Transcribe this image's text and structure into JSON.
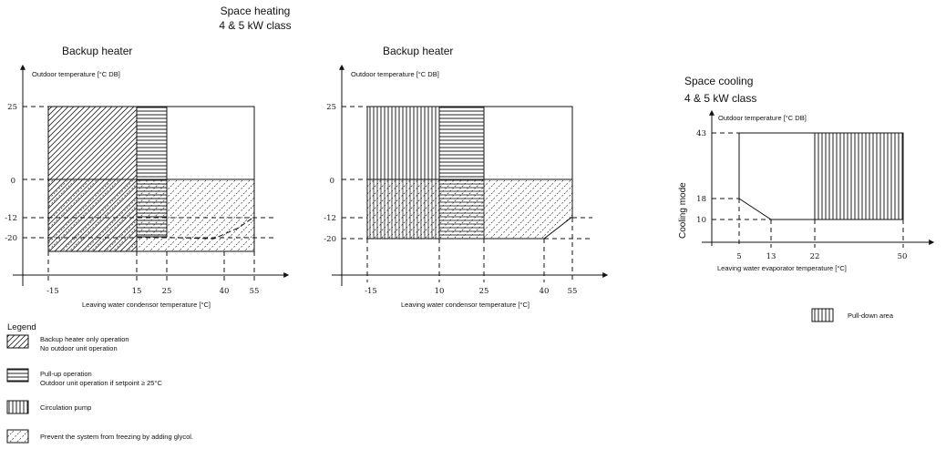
{
  "main_title": {
    "line1": "Space heating",
    "line2": "4 & 5 kW class"
  },
  "chart_left": {
    "title": "Backup heater",
    "y_axis_label": "Outdoor temperature [°C DB]",
    "x_axis_label": "Leaving water condensor temperature [°C]",
    "y_ticks": [
      "25",
      "0",
      "-12",
      "-20"
    ],
    "x_ticks": [
      "-15",
      "15",
      "25",
      "40",
      "55"
    ]
  },
  "chart_middle": {
    "title": "Backup heater",
    "y_axis_label": "Outdoor temperature [°C DB]",
    "x_axis_label": "Leaving water condensor temperature [°C]",
    "y_ticks": [
      "25",
      "0",
      "-12",
      "-20"
    ],
    "x_ticks": [
      "-15",
      "10",
      "25",
      "40",
      "55"
    ]
  },
  "chart_right": {
    "title_line1": "Space cooling",
    "title_line2": "4 & 5 kW class",
    "y_axis_label": "Outdoor temperature [°C DB]",
    "side_label": "Cooling mode",
    "x_axis_label": "Leaving water evaporator temperature [°C]",
    "y_ticks": [
      "43",
      "18",
      "10"
    ],
    "x_ticks": [
      "5",
      "13",
      "22",
      "50"
    ],
    "legend_label": "Pull-down area"
  },
  "legend": {
    "heading": "Legend",
    "items": [
      {
        "line1": "Backup heater only operation",
        "line2": "No outdoor unit operation"
      },
      {
        "line1": "Pull-up operation",
        "line2": "Outdoor unit operation if setpoint ≥ 25°C"
      },
      {
        "line1": "Circulation pump",
        "line2": ""
      },
      {
        "line1": "Prevent the system from freezing by adding glycol.",
        "line2": ""
      }
    ]
  }
}
